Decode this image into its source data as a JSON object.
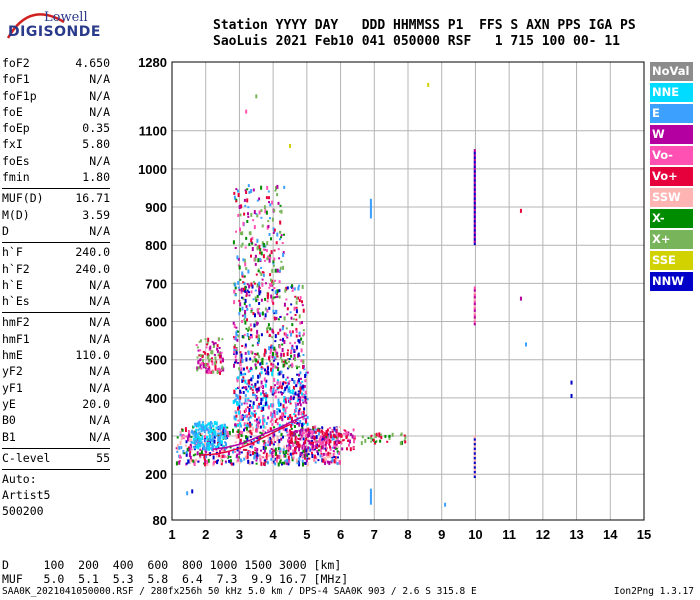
{
  "logo": {
    "line1": "Lowell",
    "line2": "DIGISONDE"
  },
  "header": {
    "line1": "Station YYYY DAY   DDD HHMMSS P1  FFS S AXN PPS IGA PS",
    "line2": "SaoLuis 2021 Feb10 041 050000 RSF   1 715 100 00- 11"
  },
  "params": {
    "group1": [
      {
        "label": "foF2",
        "value": "4.650"
      },
      {
        "label": "foF1",
        "value": "N/A"
      },
      {
        "label": "foF1p",
        "value": "N/A"
      },
      {
        "label": "foE",
        "value": "N/A"
      },
      {
        "label": "foEp",
        "value": "0.35"
      },
      {
        "label": "fxI",
        "value": "5.80"
      },
      {
        "label": "foEs",
        "value": "N/A"
      },
      {
        "label": "fmin",
        "value": "1.80"
      }
    ],
    "group2": [
      {
        "label": "MUF(D)",
        "value": "16.71"
      },
      {
        "label": "M(D)",
        "value": "3.59"
      },
      {
        "label": "D",
        "value": "N/A"
      }
    ],
    "group3": [
      {
        "label": "h`F",
        "value": "240.0"
      },
      {
        "label": "h`F2",
        "value": "240.0"
      },
      {
        "label": "h`E",
        "value": "N/A"
      },
      {
        "label": "h`Es",
        "value": "N/A"
      }
    ],
    "group4": [
      {
        "label": "hmF2",
        "value": "N/A"
      },
      {
        "label": "hmF1",
        "value": "N/A"
      },
      {
        "label": "hmE",
        "value": "110.0"
      },
      {
        "label": "yF2",
        "value": "N/A"
      },
      {
        "label": "yF1",
        "value": "N/A"
      },
      {
        "label": "yE",
        "value": "20.0"
      },
      {
        "label": "B0",
        "value": "N/A"
      },
      {
        "label": "B1",
        "value": "N/A"
      }
    ],
    "clevel": {
      "label": "C-level",
      "value": "55"
    },
    "auto_label": "Auto:",
    "artist": "Artist5",
    "code": "500200"
  },
  "legend": [
    {
      "label": "NoVal",
      "color": "#8c8c8c"
    },
    {
      "label": "NNE",
      "color": "#00dcff"
    },
    {
      "label": "E",
      "color": "#3ca0ff"
    },
    {
      "label": "W",
      "color": "#b400a0"
    },
    {
      "label": "Vo-",
      "color": "#ff50b4"
    },
    {
      "label": "Vo+",
      "color": "#e6003c"
    },
    {
      "label": "SSW",
      "color": "#ffb4b4"
    },
    {
      "label": "X-",
      "color": "#008c00"
    },
    {
      "label": "X+",
      "color": "#78b45a"
    },
    {
      "label": "SSE",
      "color": "#d2d200"
    },
    {
      "label": "NNW",
      "color": "#0000c8"
    }
  ],
  "bottom": {
    "line1": "D     100  200  400  600  800 1000 1500 3000 [km]",
    "line2": "MUF   5.0  5.1  5.3  5.8  6.4  7.3  9.9 16.7 [MHz]"
  },
  "footer": "SAA0K_2021041050000.RSF / 280fx256h 50 kHz 5.0 km / DPS-4 SAA0K 903 / 2.6 S 315.8 E",
  "version": "Ion2Png 1.3.17",
  "chart_data": {
    "type": "scatter",
    "xlim": [
      1,
      15
    ],
    "ylim": [
      80,
      1280
    ],
    "xticks": [
      1,
      2,
      3,
      4,
      5,
      6,
      7,
      8,
      9,
      10,
      11,
      12,
      13,
      14,
      15
    ],
    "yticks": [
      80,
      200,
      300,
      400,
      500,
      600,
      700,
      800,
      900,
      1000,
      1100,
      1280
    ],
    "grid": true,
    "echo_traces": [
      {
        "name": "O-trace",
        "color": "#e6003c",
        "points": [
          [
            1.8,
            250
          ],
          [
            2.2,
            252
          ],
          [
            2.6,
            258
          ],
          [
            3.0,
            268
          ],
          [
            3.4,
            282
          ],
          [
            3.8,
            300
          ],
          [
            4.2,
            318
          ],
          [
            4.5,
            330
          ]
        ]
      },
      {
        "name": "X-trace",
        "color": "#b400a0",
        "points": [
          [
            2.2,
            265
          ],
          [
            2.6,
            270
          ],
          [
            3.0,
            278
          ],
          [
            3.4,
            292
          ],
          [
            3.8,
            308
          ],
          [
            4.2,
            322
          ],
          [
            4.6,
            340
          ],
          [
            5.0,
            355
          ]
        ]
      }
    ],
    "echo_regions": [
      {
        "x": [
          1.1,
          6.0
        ],
        "y": [
          230,
          330
        ],
        "density": 700,
        "colors": [
          "#e6003c",
          "#ff50b4",
          "#3ca0ff",
          "#b400a0",
          "#0000c8",
          "#008c00",
          "#ffb4b4"
        ]
      },
      {
        "x": [
          1.6,
          2.6
        ],
        "y": [
          270,
          340
        ],
        "density": 160,
        "colors": [
          "#00dcff",
          "#3ca0ff"
        ]
      },
      {
        "x": [
          2.8,
          5.0
        ],
        "y": [
          330,
          480
        ],
        "density": 420,
        "colors": [
          "#0000c8",
          "#3ca0ff",
          "#e6003c",
          "#ff50b4",
          "#b400a0",
          "#00dcff"
        ]
      },
      {
        "x": [
          2.8,
          4.9
        ],
        "y": [
          480,
          700
        ],
        "density": 380,
        "colors": [
          "#b400a0",
          "#ff50b4",
          "#e6003c",
          "#3ca0ff",
          "#0000c8",
          "#008c00",
          "#78b45a"
        ]
      },
      {
        "x": [
          1.7,
          2.5
        ],
        "y": [
          470,
          560
        ],
        "density": 110,
        "colors": [
          "#e6003c",
          "#ff50b4",
          "#b400a0",
          "#78b45a"
        ]
      },
      {
        "x": [
          2.8,
          4.3
        ],
        "y": [
          700,
          960
        ],
        "density": 200,
        "colors": [
          "#008c00",
          "#78b45a",
          "#ff50b4",
          "#b400a0",
          "#e6003c",
          "#3ca0ff"
        ]
      },
      {
        "x": [
          4.4,
          6.4
        ],
        "y": [
          270,
          320
        ],
        "density": 160,
        "colors": [
          "#e6003c",
          "#ff50b4",
          "#b400a0"
        ]
      },
      {
        "x": [
          6.6,
          7.9
        ],
        "y": [
          285,
          310
        ],
        "density": 35,
        "colors": [
          "#008c00",
          "#78b45a",
          "#e6003c"
        ]
      }
    ],
    "echo_lines": [
      {
        "x": 9.98,
        "y": [
          800,
          1050
        ],
        "colors": [
          "#0000c8",
          "#b400a0"
        ]
      },
      {
        "x": 9.98,
        "y": [
          590,
          690
        ],
        "colors": [
          "#b400a0",
          "#ff50b4",
          "#ffb4b4"
        ]
      },
      {
        "x": 9.98,
        "y": [
          190,
          300
        ],
        "colors": [
          "#0000c8",
          "#ffb4b4"
        ]
      },
      {
        "x": 6.9,
        "y": [
          870,
          920
        ],
        "colors": [
          "#3ca0ff"
        ]
      },
      {
        "x": 6.9,
        "y": [
          120,
          160
        ],
        "colors": [
          "#3ca0ff"
        ]
      }
    ],
    "echo_points": [
      {
        "x": 8.6,
        "y": 1220,
        "color": "#d2d200"
      },
      {
        "x": 11.35,
        "y": 890,
        "color": "#e6003c"
      },
      {
        "x": 11.35,
        "y": 660,
        "color": "#b400a0"
      },
      {
        "x": 11.5,
        "y": 540,
        "color": "#3ca0ff"
      },
      {
        "x": 12.85,
        "y": 440,
        "color": "#0000c8"
      },
      {
        "x": 12.85,
        "y": 405,
        "color": "#0000c8"
      },
      {
        "x": 9.1,
        "y": 120,
        "color": "#3ca0ff"
      },
      {
        "x": 1.45,
        "y": 150,
        "color": "#3ca0ff"
      },
      {
        "x": 1.6,
        "y": 155,
        "color": "#0000c8"
      },
      {
        "x": 3.2,
        "y": 1150,
        "color": "#ff50b4"
      },
      {
        "x": 3.5,
        "y": 1190,
        "color": "#78b45a"
      },
      {
        "x": 4.5,
        "y": 1060,
        "color": "#d2d200"
      }
    ]
  }
}
